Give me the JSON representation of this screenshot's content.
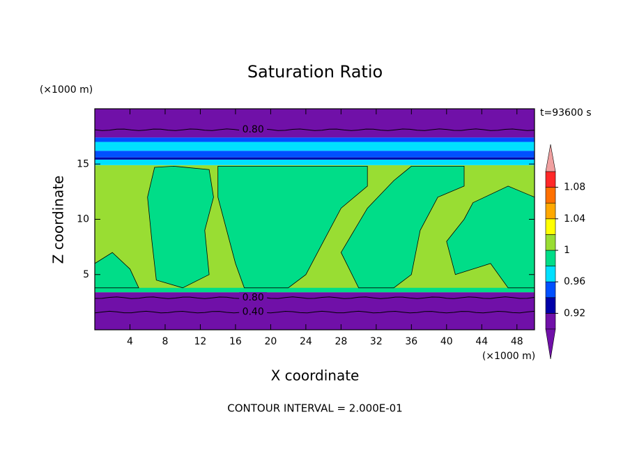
{
  "chart_data": {
    "type": "contour",
    "title": "Saturation Ratio",
    "y_unit": "(×1000 m)",
    "x_unit": "(×1000 m)",
    "time_label": "t=93600 s",
    "xlabel": "X coordinate",
    "ylabel": "Z coordinate",
    "footer": "CONTOUR INTERVAL = 2.000E-01",
    "xlim": [
      0,
      50
    ],
    "ylim": [
      0,
      20
    ],
    "xticks": [
      4,
      8,
      12,
      16,
      20,
      24,
      28,
      32,
      36,
      40,
      44,
      48
    ],
    "yticks": [
      5,
      10,
      15
    ],
    "colorbar": {
      "levels": [
        0.9,
        0.92,
        0.94,
        0.96,
        0.98,
        1,
        1.02,
        1.04,
        1.06,
        1.08,
        1.1
      ],
      "colors": [
        "#7010a8",
        "#0000a8",
        "#0050ff",
        "#00e0ff",
        "#00dd88",
        "#99dd33",
        "#ffff00",
        "#ffa800",
        "#ff7000",
        "#ff2828"
      ],
      "under_color": "#7010a8",
      "over_color": "#f0a0a0",
      "ticks": [
        0.92,
        0.96,
        1,
        1.04,
        1.08
      ]
    },
    "bands": [
      {
        "z0": 0,
        "z1": 3.4,
        "value": 0.5
      },
      {
        "z0": 3.4,
        "z1": 14.9,
        "value": 1.01
      },
      {
        "z0": 3.4,
        "z1": 3.8,
        "value": 0.99
      },
      {
        "z0": 14.9,
        "z1": 15.4,
        "value": 0.97
      },
      {
        "z0": 15.4,
        "z1": 15.6,
        "value": 0.93
      },
      {
        "z0": 15.6,
        "z1": 16.2,
        "value": 0.95
      },
      {
        "z0": 16.2,
        "z1": 17.0,
        "value": 0.97
      },
      {
        "z0": 17.0,
        "z1": 17.4,
        "value": 0.95
      },
      {
        "z0": 17.4,
        "z1": 20,
        "value": 0.5
      }
    ],
    "patches": [
      {
        "value": 0.99,
        "points": [
          [
            6.8,
            14.7
          ],
          [
            9,
            14.8
          ],
          [
            13,
            14.5
          ],
          [
            13.5,
            12
          ],
          [
            12.5,
            9
          ],
          [
            13,
            5
          ],
          [
            10,
            3.8
          ],
          [
            7,
            4.5
          ],
          [
            6.5,
            8
          ],
          [
            6,
            12
          ]
        ]
      },
      {
        "value": 0.99,
        "points": [
          [
            14,
            14.8
          ],
          [
            31,
            14.8
          ],
          [
            31,
            13
          ],
          [
            28,
            11
          ],
          [
            26,
            8
          ],
          [
            24,
            5
          ],
          [
            22,
            3.8
          ],
          [
            17,
            3.8
          ],
          [
            16,
            6
          ],
          [
            15,
            9
          ],
          [
            14,
            12
          ]
        ]
      },
      {
        "value": 0.99,
        "points": [
          [
            36,
            14.8
          ],
          [
            42,
            14.8
          ],
          [
            42,
            13
          ],
          [
            39,
            12
          ],
          [
            37,
            9
          ],
          [
            36,
            5
          ],
          [
            34,
            3.8
          ],
          [
            30,
            3.8
          ],
          [
            28,
            7
          ],
          [
            31,
            11
          ],
          [
            34,
            13.5
          ]
        ]
      },
      {
        "value": 0.99,
        "points": [
          [
            43,
            11.5
          ],
          [
            47,
            13
          ],
          [
            50,
            12
          ],
          [
            50,
            3.8
          ],
          [
            47,
            3.8
          ],
          [
            45,
            6
          ],
          [
            41,
            5
          ],
          [
            40,
            8
          ],
          [
            42,
            10
          ]
        ]
      },
      {
        "value": 0.99,
        "points": [
          [
            0,
            3.8
          ],
          [
            0,
            6
          ],
          [
            2,
            7
          ],
          [
            4,
            5.5
          ],
          [
            5,
            3.8
          ]
        ]
      }
    ],
    "contours": [
      {
        "level": 0.8,
        "label": "0.80",
        "z": 18.1
      },
      {
        "level": 0.8,
        "label": "0.80",
        "z": 2.9
      },
      {
        "level": 0.4,
        "label": "0.40",
        "z": 1.6
      }
    ]
  }
}
